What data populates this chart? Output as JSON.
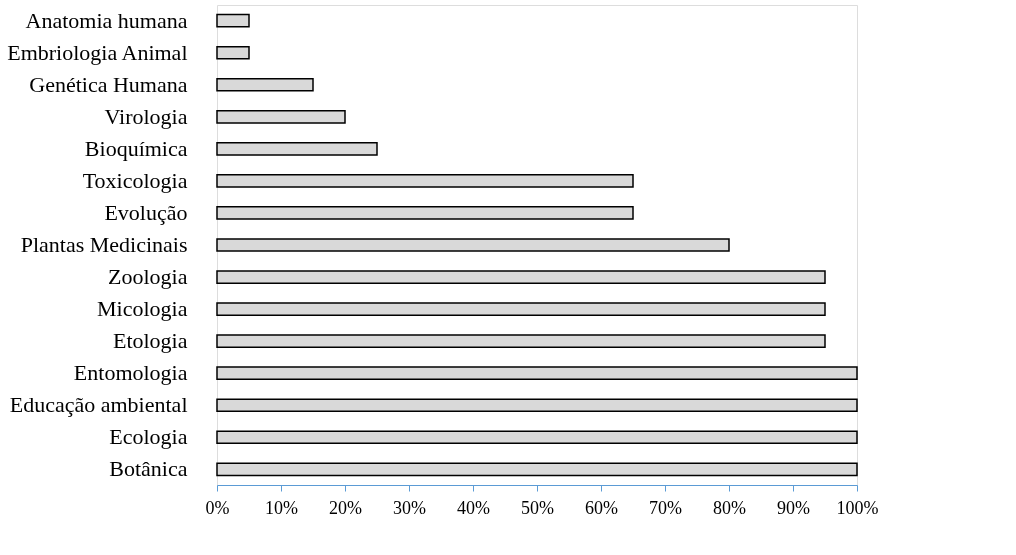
{
  "chart_data": {
    "type": "bar",
    "orientation": "horizontal",
    "categories": [
      "Anatomia humana",
      "Embriologia Animal",
      "Genética Humana",
      "Virologia",
      "Bioquímica",
      "Toxicologia",
      "Evolução",
      "Plantas Medicinais",
      "Zoologia",
      "Micologia",
      "Etologia",
      "Entomologia",
      "Educação ambiental",
      "Ecologia",
      "Botânica"
    ],
    "values": [
      5,
      5,
      15,
      20,
      25,
      65,
      65,
      80,
      95,
      95,
      95,
      100,
      100,
      100,
      100
    ],
    "color": "#d9d9d9",
    "xlim": [
      0,
      100
    ],
    "xticks": [
      {
        "value": 0,
        "label": "0%"
      },
      {
        "value": 10,
        "label": "10%"
      },
      {
        "value": 20,
        "label": "20%"
      },
      {
        "value": 30,
        "label": "30%"
      },
      {
        "value": 40,
        "label": "40%"
      },
      {
        "value": 50,
        "label": "50%"
      },
      {
        "value": 60,
        "label": "60%"
      },
      {
        "value": 70,
        "label": "70%"
      },
      {
        "value": 80,
        "label": "80%"
      },
      {
        "value": 90,
        "label": "90%"
      },
      {
        "value": 100,
        "label": "100%"
      }
    ],
    "grid": false
  }
}
